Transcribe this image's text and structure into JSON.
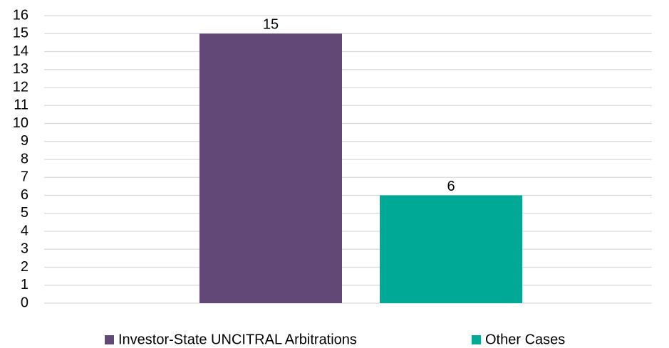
{
  "chart_data": {
    "type": "bar",
    "categories": [
      null
    ],
    "series": [
      {
        "name": "Investor-State UNCITRAL Arbitrations",
        "color": "#614877",
        "values": [
          15
        ]
      },
      {
        "name": "Other Cases",
        "color": "#00a896",
        "values": [
          6
        ]
      }
    ],
    "ylim": [
      0,
      16
    ],
    "yticks": [
      0,
      1,
      2,
      3,
      4,
      5,
      6,
      7,
      8,
      9,
      10,
      11,
      12,
      13,
      14,
      15,
      16
    ],
    "grid": true,
    "legend": "bottom"
  }
}
